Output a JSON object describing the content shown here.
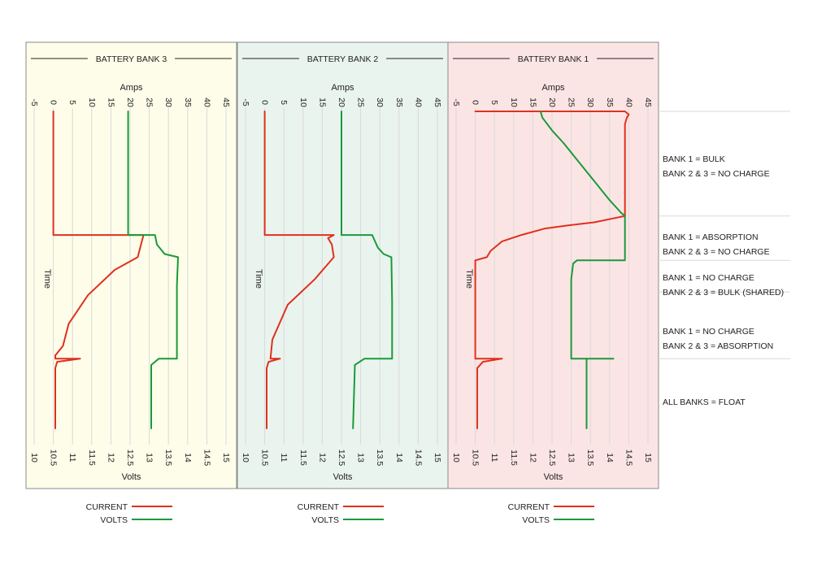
{
  "chart_data": [
    {
      "type": "line",
      "title": "BATTERY BANK 3",
      "bg_color": "#fdfdea",
      "top_axis": {
        "label": "Amps",
        "ticks": [
          -5,
          0,
          5,
          10,
          15,
          20,
          25,
          30,
          35,
          40,
          45
        ],
        "range": [
          -5,
          45
        ]
      },
      "bottom_axis": {
        "label": "Volts",
        "ticks": [
          10,
          10.5,
          11,
          11.5,
          12,
          12.5,
          13,
          13.5,
          14,
          14.5,
          15
        ],
        "range": [
          10,
          15
        ]
      },
      "side_label": "Time",
      "series": [
        {
          "name": "CURRENT",
          "color": "#e0301e",
          "points": [
            [
              0,
              0
            ],
            [
              0,
              0.39
            ],
            [
              23.5,
              0.39
            ],
            [
              22,
              0.46
            ],
            [
              16,
              0.5
            ],
            [
              9,
              0.58
            ],
            [
              4,
              0.67
            ],
            [
              2.5,
              0.74
            ],
            [
              0.5,
              0.77
            ],
            [
              0.5,
              0.78
            ],
            [
              7,
              0.78
            ],
            [
              1,
              0.79
            ],
            [
              0.5,
              0.81
            ],
            [
              0.5,
              1
            ]
          ]
        },
        {
          "name": "VOLTS",
          "color": "#1a9a3a",
          "points": [
            [
              12.45,
              0
            ],
            [
              12.45,
              0.39
            ],
            [
              13.15,
              0.39
            ],
            [
              13.2,
              0.42
            ],
            [
              13.4,
              0.45
            ],
            [
              13.75,
              0.46
            ],
            [
              13.72,
              0.55
            ],
            [
              13.72,
              0.78
            ],
            [
              13.25,
              0.78
            ],
            [
              13.05,
              0.8
            ],
            [
              13.05,
              1
            ]
          ]
        }
      ]
    },
    {
      "type": "line",
      "title": "BATTERY BANK 2",
      "bg_color": "#eaf4ee",
      "top_axis": {
        "label": "Amps",
        "ticks": [
          -5,
          0,
          5,
          10,
          15,
          20,
          25,
          30,
          35,
          40,
          45
        ],
        "range": [
          -5,
          45
        ]
      },
      "bottom_axis": {
        "label": "Volts",
        "ticks": [
          10,
          10.5,
          11,
          11.5,
          12,
          12.5,
          13,
          13.5,
          14,
          14.5,
          15
        ],
        "range": [
          10,
          15
        ]
      },
      "side_label": "Time",
      "series": [
        {
          "name": "CURRENT",
          "color": "#e0301e",
          "points": [
            [
              0,
              0
            ],
            [
              0,
              0.39
            ],
            [
              18,
              0.39
            ],
            [
              16.5,
              0.4
            ],
            [
              17.5,
              0.42
            ],
            [
              18,
              0.46
            ],
            [
              13,
              0.53
            ],
            [
              6,
              0.61
            ],
            [
              2,
              0.72
            ],
            [
              1.5,
              0.78
            ],
            [
              4,
              0.78
            ],
            [
              1,
              0.79
            ],
            [
              0.5,
              0.81
            ],
            [
              0.5,
              1
            ]
          ]
        },
        {
          "name": "VOLTS",
          "color": "#1a9a3a",
          "points": [
            [
              12.5,
              0
            ],
            [
              12.5,
              0.39
            ],
            [
              13.3,
              0.39
            ],
            [
              13.45,
              0.43
            ],
            [
              13.6,
              0.45
            ],
            [
              13.8,
              0.46
            ],
            [
              13.82,
              0.6
            ],
            [
              13.82,
              0.78
            ],
            [
              13.1,
              0.78
            ],
            [
              12.85,
              0.8
            ],
            [
              12.8,
              1
            ]
          ]
        }
      ]
    },
    {
      "type": "line",
      "title": "BATTERY BANK 1",
      "bg_color": "#fbe5e4",
      "top_axis": {
        "label": "Amps",
        "ticks": [
          -5,
          0,
          5,
          10,
          15,
          20,
          25,
          30,
          35,
          40,
          45
        ],
        "range": [
          -5,
          45
        ]
      },
      "bottom_axis": {
        "label": "Volts",
        "ticks": [
          10,
          10.5,
          11,
          11.5,
          12,
          12.5,
          13,
          13.5,
          14,
          14.5,
          15
        ],
        "range": [
          10,
          15
        ]
      },
      "side_label": "Time",
      "series": [
        {
          "name": "CURRENT",
          "color": "#e0301e",
          "points": [
            [
              0,
              0
            ],
            [
              39,
              0
            ],
            [
              40,
              0.01
            ],
            [
              39.5,
              0.02
            ],
            [
              39,
              0.04
            ],
            [
              39,
              0.33
            ],
            [
              31,
              0.35
            ],
            [
              24,
              0.36
            ],
            [
              18,
              0.37
            ],
            [
              12,
              0.39
            ],
            [
              7,
              0.41
            ],
            [
              4,
              0.44
            ],
            [
              3,
              0.46
            ],
            [
              0,
              0.47
            ],
            [
              0,
              0.78
            ],
            [
              7,
              0.78
            ],
            [
              2,
              0.79
            ],
            [
              0.5,
              0.81
            ],
            [
              0.5,
              1
            ]
          ]
        },
        {
          "name": "VOLTS",
          "color": "#1a9a3a",
          "points": [
            [
              12.2,
              0
            ],
            [
              12.25,
              0.02
            ],
            [
              12.5,
              0.06
            ],
            [
              12.8,
              0.1
            ],
            [
              13.2,
              0.16
            ],
            [
              13.6,
              0.22
            ],
            [
              14,
              0.28
            ],
            [
              14.3,
              0.32
            ],
            [
              14.4,
              0.33
            ],
            [
              14.4,
              0.47
            ],
            [
              13.15,
              0.47
            ],
            [
              13.05,
              0.48
            ],
            [
              13,
              0.53
            ],
            [
              13,
              0.78
            ],
            [
              14.1,
              0.78
            ],
            [
              13.4,
              0.78
            ],
            [
              13.4,
              1
            ]
          ]
        }
      ]
    }
  ],
  "phases": [
    {
      "lines": [
        "BANK 1 = BULK",
        "BANK 2 & 3 = NO CHARGE"
      ],
      "t_start": 0,
      "t_end": 0.33
    },
    {
      "lines": [
        "BANK 1 = ABSORPTION",
        "BANK 2 & 3 = NO CHARGE"
      ],
      "t_start": 0.33,
      "t_end": 0.47
    },
    {
      "lines": [
        "BANK 1 = NO CHARGE",
        "BANK 2 & 3 = BULK (SHARED)"
      ],
      "t_start": 0.47,
      "t_end": 0.57
    },
    {
      "lines": [
        "BANK 1 = NO CHARGE",
        "BANK 2 & 3 = ABSORPTION"
      ],
      "t_start": 0.57,
      "t_end": 0.78
    },
    {
      "lines": [
        "ALL BANKS = FLOAT"
      ],
      "t_start": 0.78,
      "t_end": 1
    }
  ],
  "legend": [
    {
      "label": "CURRENT",
      "color": "#e0301e"
    },
    {
      "label": "VOLTS",
      "color": "#1a9a3a"
    }
  ]
}
